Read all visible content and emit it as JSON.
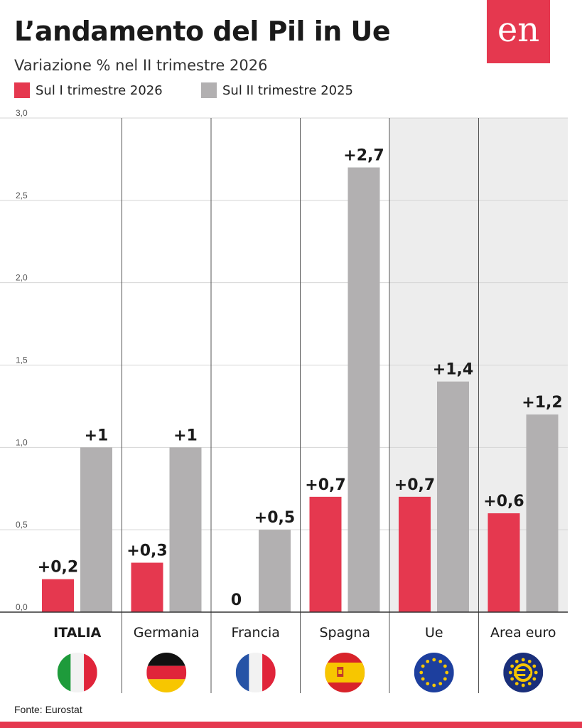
{
  "title": "L’andamento del Pil in Ue",
  "subtitle": "Variazione % nel II trimestre 2026",
  "logo_text": "en",
  "source": "Fonte: Eurostat",
  "colors": {
    "series1": "#e5384f",
    "series2": "#b2b0b1",
    "highlight_bg": "#ededed",
    "brand": "#e5384f"
  },
  "legend": [
    {
      "label": "Sul I trimestre 2026",
      "color": "#e5384f"
    },
    {
      "label": "Sul II trimestre 2025",
      "color": "#b2b0b1"
    }
  ],
  "flags": [
    "italy-flag-icon",
    "germany-flag-icon",
    "france-flag-icon",
    "spain-flag-icon",
    "eu-flag-icon",
    "euro-area-icon"
  ],
  "chart_data": {
    "type": "bar",
    "categories": [
      "ITALIA",
      "Germania",
      "Francia",
      "Spagna",
      "Ue",
      "Area euro"
    ],
    "series": [
      {
        "name": "Sul I trimestre 2026",
        "values": [
          0.2,
          0.3,
          0,
          0.7,
          0.7,
          0.6
        ],
        "labels": [
          "+0,2",
          "+0,3",
          "0",
          "+0,7",
          "+0,7",
          "+0,6"
        ]
      },
      {
        "name": "Sul II trimestre 2025",
        "values": [
          1.0,
          1.0,
          0.5,
          2.7,
          1.4,
          1.2
        ],
        "labels": [
          "+1",
          "+1",
          "+0,5",
          "+2,7",
          "+1,4",
          "+1,2"
        ]
      }
    ],
    "yticks": [
      "0,0",
      "0,5",
      "1,0",
      "1,5",
      "2,0",
      "2,5",
      "3,0"
    ],
    "ylim": [
      0,
      3
    ],
    "highlighted_categories": [
      "Ue",
      "Area euro"
    ],
    "grid": true
  }
}
